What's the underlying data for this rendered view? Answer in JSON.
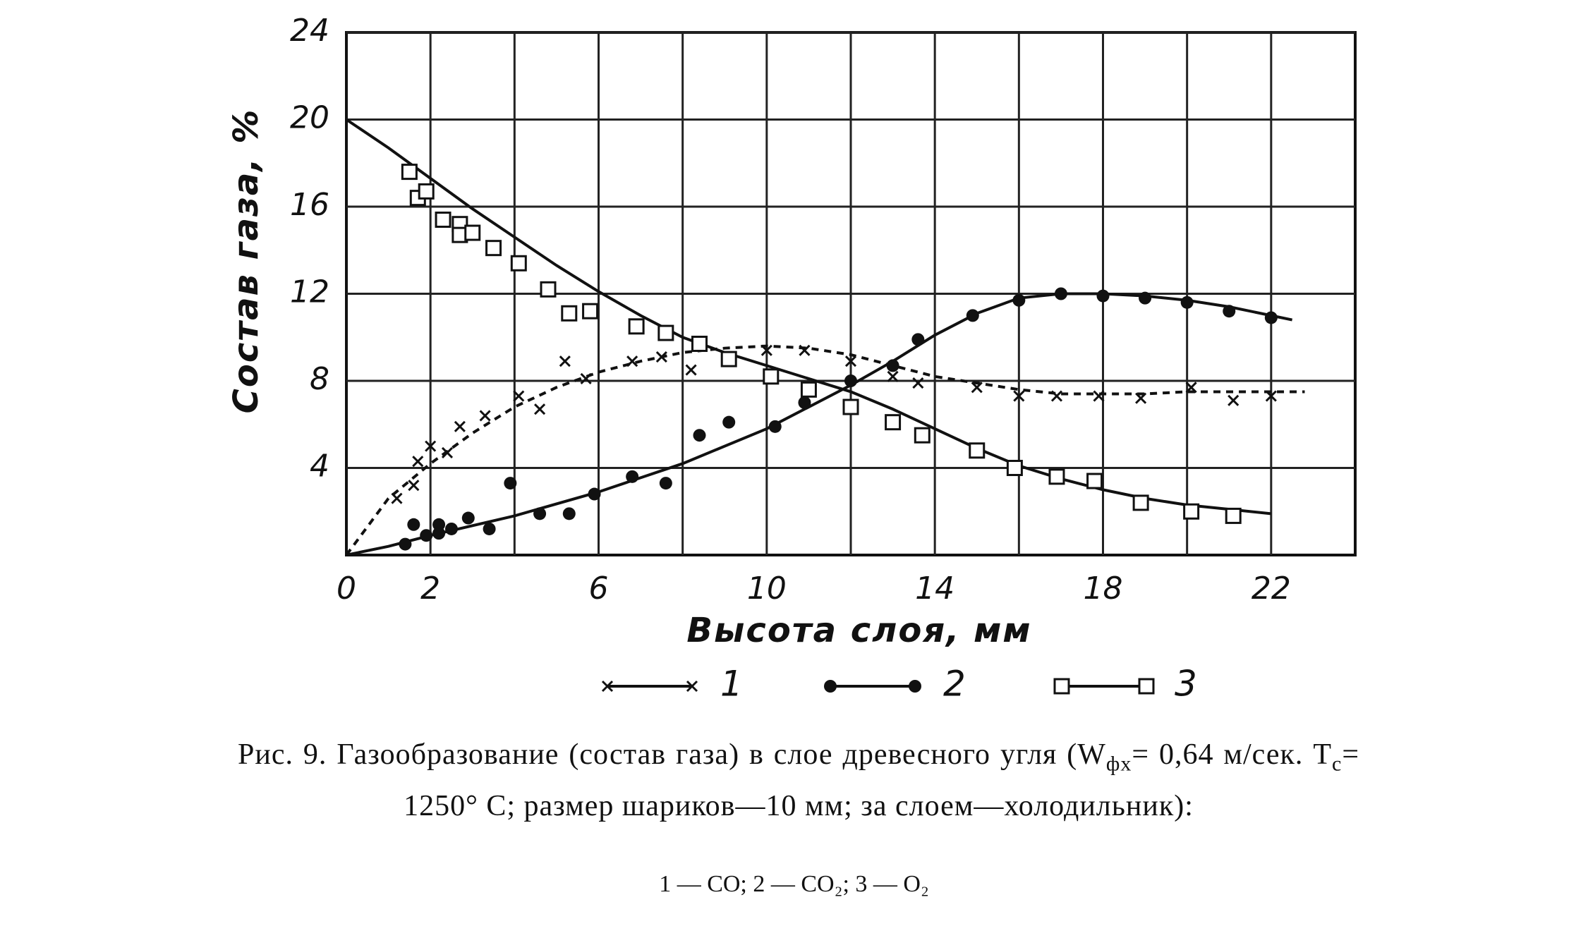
{
  "chart_data": {
    "type": "scatter",
    "xlabel": "Высота слоя, мм",
    "ylabel": "Состав газа, %",
    "xlim": [
      0,
      24
    ],
    "ylim": [
      0,
      24
    ],
    "xticks": [
      0,
      2,
      6,
      10,
      14,
      18,
      22
    ],
    "xgrid": [
      2,
      4,
      6,
      8,
      10,
      12,
      14,
      16,
      18,
      20,
      22
    ],
    "yticks": [
      4,
      8,
      12,
      16,
      20,
      24
    ],
    "grid": true,
    "series": [
      {
        "name": "1",
        "color": "#111111",
        "marker": "x",
        "line_style": "dashed",
        "x": [
          1.2,
          1.6,
          1.7,
          2.0,
          2.4,
          2.7,
          3.3,
          4.1,
          4.6,
          5.2,
          5.7,
          6.8,
          7.5,
          8.2,
          9.1,
          10.0,
          10.9,
          12.0,
          13.0,
          13.6,
          15.0,
          16.0,
          16.9,
          17.9,
          18.9,
          20.1,
          21.1,
          22.0
        ],
        "values": [
          2.6,
          3.2,
          4.3,
          5.0,
          4.7,
          5.9,
          6.4,
          7.3,
          6.7,
          8.9,
          8.1,
          8.9,
          9.1,
          8.5,
          9.1,
          9.4,
          9.4,
          8.9,
          8.2,
          7.9,
          7.7,
          7.3,
          7.3,
          7.3,
          7.2,
          7.7,
          7.1,
          7.3
        ],
        "fit_x": [
          0,
          1,
          2,
          3,
          4,
          5,
          6,
          7,
          8,
          9,
          10,
          11,
          12,
          13,
          14,
          15,
          16,
          17,
          18,
          19,
          20,
          21,
          22,
          22.8
        ],
        "fit_values": [
          0,
          2.6,
          4.2,
          5.6,
          6.8,
          7.7,
          8.4,
          8.9,
          9.3,
          9.5,
          9.6,
          9.5,
          9.2,
          8.7,
          8.2,
          7.9,
          7.6,
          7.4,
          7.4,
          7.4,
          7.5,
          7.5,
          7.5,
          7.5
        ]
      },
      {
        "name": "2",
        "color": "#111111",
        "marker": "dot",
        "line_style": "solid",
        "x": [
          1.4,
          1.6,
          1.9,
          2.2,
          2.2,
          2.5,
          2.9,
          3.4,
          3.9,
          4.6,
          5.3,
          5.9,
          6.8,
          7.6,
          8.4,
          9.1,
          10.2,
          10.9,
          12.0,
          13.0,
          13.6,
          14.9,
          16.0,
          17.0,
          18.0,
          19.0,
          20.0,
          21.0,
          22.0
        ],
        "values": [
          0.5,
          1.4,
          0.9,
          1.4,
          1.0,
          1.2,
          1.7,
          1.2,
          3.3,
          1.9,
          1.9,
          2.8,
          3.6,
          3.3,
          5.5,
          6.1,
          5.9,
          7.0,
          8.0,
          8.7,
          9.9,
          11.0,
          11.7,
          12.0,
          11.9,
          11.8,
          11.6,
          11.2,
          10.9
        ],
        "fit_x": [
          0,
          1,
          2,
          4,
          6,
          8,
          10,
          12,
          13,
          14,
          15,
          16,
          17,
          18,
          19,
          20,
          21,
          22,
          22.5
        ],
        "fit_values": [
          0,
          0.4,
          0.9,
          1.8,
          2.9,
          4.2,
          5.8,
          7.8,
          8.9,
          10.1,
          11.1,
          11.8,
          12.0,
          12.0,
          11.9,
          11.7,
          11.4,
          11.0,
          10.8
        ]
      },
      {
        "name": "3",
        "color": "#111111",
        "marker": "square",
        "line_style": "solid",
        "x": [
          1.5,
          1.7,
          1.9,
          2.3,
          2.7,
          2.7,
          3.0,
          3.5,
          4.1,
          4.8,
          5.3,
          5.8,
          6.9,
          7.6,
          8.4,
          9.1,
          10.1,
          11.0,
          12.0,
          13.0,
          13.7,
          15.0,
          15.9,
          16.9,
          17.8,
          18.9,
          20.1,
          21.1
        ],
        "values": [
          17.6,
          16.4,
          16.7,
          15.4,
          15.2,
          14.7,
          14.8,
          14.1,
          13.4,
          12.2,
          11.1,
          11.2,
          10.5,
          10.2,
          9.7,
          9.0,
          8.2,
          7.6,
          6.8,
          6.1,
          5.5,
          4.8,
          4.0,
          3.6,
          3.4,
          2.4,
          2.0,
          1.8
        ],
        "fit_x": [
          0,
          1,
          2,
          3,
          4,
          5,
          6,
          7,
          8,
          9,
          10,
          11,
          12,
          13,
          14,
          15,
          16,
          17,
          18,
          19,
          20,
          21,
          22
        ],
        "fit_values": [
          20,
          18.7,
          17.3,
          15.9,
          14.6,
          13.3,
          12.1,
          11.0,
          10.0,
          9.3,
          8.7,
          8.1,
          7.5,
          6.7,
          5.8,
          4.9,
          4.1,
          3.5,
          3.0,
          2.6,
          2.3,
          2.1,
          1.9
        ]
      }
    ]
  },
  "caption": {
    "parts": [
      "Рис. 9. Газообразование (состав газа) в слое древесного угля (W",
      "фх",
      "= 0,64 м/сек.  T",
      "с",
      "= 1250° С; размер шариков—10 мм; за слоем—холодильник):"
    ],
    "note": "1 — CO; 2 — CO₂; 3 — O₂"
  }
}
